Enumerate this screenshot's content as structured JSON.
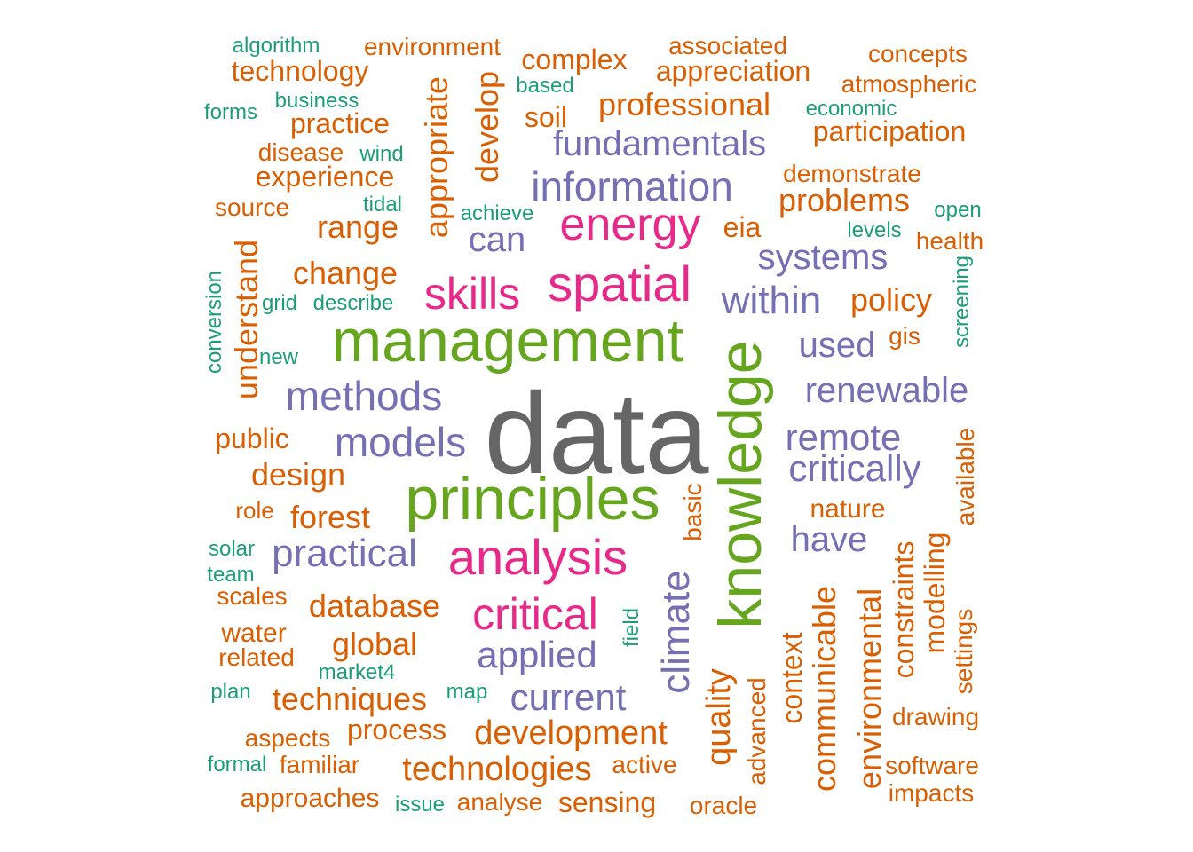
{
  "chart_data": {
    "type": "wordcloud",
    "colors": {
      "grey": "#666666",
      "green": "#66a61e",
      "pink": "#e7298a",
      "purple": "#7570b3",
      "orange": "#d95f02",
      "teal": "#1b9e77"
    },
    "words": [
      {
        "text": "data",
        "color": "grey",
        "size": 130,
        "rotate": false
      },
      {
        "text": "management",
        "color": "green",
        "size": 68,
        "rotate": false
      },
      {
        "text": "principles",
        "color": "green",
        "size": 68,
        "rotate": false
      },
      {
        "text": "knowledge",
        "color": "green",
        "size": 68,
        "rotate": true
      },
      {
        "text": "spatial",
        "color": "pink",
        "size": 56,
        "rotate": false
      },
      {
        "text": "analysis",
        "color": "pink",
        "size": 56,
        "rotate": false
      },
      {
        "text": "skills",
        "color": "pink",
        "size": 50,
        "rotate": false
      },
      {
        "text": "energy",
        "color": "pink",
        "size": 52,
        "rotate": false
      },
      {
        "text": "critical",
        "color": "pink",
        "size": 50,
        "rotate": false
      },
      {
        "text": "information",
        "color": "purple",
        "size": 46,
        "rotate": false
      },
      {
        "text": "methods",
        "color": "purple",
        "size": 46,
        "rotate": false
      },
      {
        "text": "models",
        "color": "purple",
        "size": 46,
        "rotate": false
      },
      {
        "text": "practical",
        "color": "purple",
        "size": 44,
        "rotate": false
      },
      {
        "text": "climate",
        "color": "purple",
        "size": 44,
        "rotate": true
      },
      {
        "text": "within",
        "color": "purple",
        "size": 44,
        "rotate": false
      },
      {
        "text": "fundamentals",
        "color": "purple",
        "size": 40,
        "rotate": false
      },
      {
        "text": "applied",
        "color": "purple",
        "size": 42,
        "rotate": false
      },
      {
        "text": "current",
        "color": "purple",
        "size": 42,
        "rotate": false
      },
      {
        "text": "critically",
        "color": "purple",
        "size": 42,
        "rotate": false
      },
      {
        "text": "remote",
        "color": "purple",
        "size": 42,
        "rotate": false
      },
      {
        "text": "renewable",
        "color": "purple",
        "size": 40,
        "rotate": false
      },
      {
        "text": "systems",
        "color": "purple",
        "size": 40,
        "rotate": false
      },
      {
        "text": "used",
        "color": "purple",
        "size": 40,
        "rotate": false
      },
      {
        "text": "have",
        "color": "purple",
        "size": 40,
        "rotate": false
      },
      {
        "text": "can",
        "color": "purple",
        "size": 40,
        "rotate": false
      },
      {
        "text": "development",
        "color": "orange",
        "size": 38,
        "rotate": false
      },
      {
        "text": "technologies",
        "color": "orange",
        "size": 38,
        "rotate": false
      },
      {
        "text": "techniques",
        "color": "orange",
        "size": 36,
        "rotate": false
      },
      {
        "text": "quality",
        "color": "orange",
        "size": 38,
        "rotate": true
      },
      {
        "text": "environmental",
        "color": "orange",
        "size": 36,
        "rotate": true
      },
      {
        "text": "communicable",
        "color": "orange",
        "size": 36,
        "rotate": true
      },
      {
        "text": "understand",
        "color": "orange",
        "size": 36,
        "rotate": true
      },
      {
        "text": "appropriate",
        "color": "orange",
        "size": 36,
        "rotate": true
      },
      {
        "text": "develop",
        "color": "orange",
        "size": 36,
        "rotate": true
      },
      {
        "text": "professional",
        "color": "orange",
        "size": 36,
        "rotate": false
      },
      {
        "text": "database",
        "color": "orange",
        "size": 36,
        "rotate": false
      },
      {
        "text": "global",
        "color": "orange",
        "size": 36,
        "rotate": false
      },
      {
        "text": "policy",
        "color": "orange",
        "size": 36,
        "rotate": false
      },
      {
        "text": "problems",
        "color": "orange",
        "size": 36,
        "rotate": false
      },
      {
        "text": "change",
        "color": "orange",
        "size": 36,
        "rotate": false
      },
      {
        "text": "range",
        "color": "orange",
        "size": 36,
        "rotate": false
      },
      {
        "text": "design",
        "color": "orange",
        "size": 36,
        "rotate": false
      },
      {
        "text": "forest",
        "color": "orange",
        "size": 36,
        "rotate": false
      },
      {
        "text": "technology",
        "color": "orange",
        "size": 32,
        "rotate": false
      },
      {
        "text": "appreciation",
        "color": "orange",
        "size": 32,
        "rotate": false
      },
      {
        "text": "complex",
        "color": "orange",
        "size": 32,
        "rotate": false
      },
      {
        "text": "practice",
        "color": "orange",
        "size": 32,
        "rotate": false
      },
      {
        "text": "experience",
        "color": "orange",
        "size": 32,
        "rotate": false
      },
      {
        "text": "participation",
        "color": "orange",
        "size": 32,
        "rotate": false
      },
      {
        "text": "soil",
        "color": "orange",
        "size": 32,
        "rotate": false
      },
      {
        "text": "process",
        "color": "orange",
        "size": 32,
        "rotate": false
      },
      {
        "text": "sensing",
        "color": "orange",
        "size": 32,
        "rotate": false
      },
      {
        "text": "eia",
        "color": "orange",
        "size": 32,
        "rotate": false
      },
      {
        "text": "constraints",
        "color": "orange",
        "size": 32,
        "rotate": true
      },
      {
        "text": "modelling",
        "color": "orange",
        "size": 32,
        "rotate": true
      },
      {
        "text": "context",
        "color": "orange",
        "size": 32,
        "rotate": true
      },
      {
        "text": "environment",
        "color": "orange",
        "size": 28,
        "rotate": false
      },
      {
        "text": "associated",
        "color": "orange",
        "size": 28,
        "rotate": false
      },
      {
        "text": "concepts",
        "color": "orange",
        "size": 28,
        "rotate": false
      },
      {
        "text": "atmospheric",
        "color": "orange",
        "size": 28,
        "rotate": false
      },
      {
        "text": "demonstrate",
        "color": "orange",
        "size": 28,
        "rotate": false
      },
      {
        "text": "disease",
        "color": "orange",
        "size": 28,
        "rotate": false
      },
      {
        "text": "source",
        "color": "orange",
        "size": 28,
        "rotate": false
      },
      {
        "text": "public",
        "color": "orange",
        "size": 32,
        "rotate": false
      },
      {
        "text": "nature",
        "color": "orange",
        "size": 30,
        "rotate": false
      },
      {
        "text": "health",
        "color": "orange",
        "size": 28,
        "rotate": false
      },
      {
        "text": "gis",
        "color": "orange",
        "size": 28,
        "rotate": false
      },
      {
        "text": "role",
        "color": "orange",
        "size": 26,
        "rotate": false
      },
      {
        "text": "scales",
        "color": "orange",
        "size": 28,
        "rotate": false
      },
      {
        "text": "water",
        "color": "orange",
        "size": 30,
        "rotate": false
      },
      {
        "text": "related",
        "color": "orange",
        "size": 28,
        "rotate": false
      },
      {
        "text": "aspects",
        "color": "orange",
        "size": 28,
        "rotate": false
      },
      {
        "text": "familiar",
        "color": "orange",
        "size": 28,
        "rotate": false
      },
      {
        "text": "approaches",
        "color": "orange",
        "size": 30,
        "rotate": false
      },
      {
        "text": "analyse",
        "color": "orange",
        "size": 28,
        "rotate": false
      },
      {
        "text": "active",
        "color": "orange",
        "size": 28,
        "rotate": false
      },
      {
        "text": "oracle",
        "color": "orange",
        "size": 28,
        "rotate": false
      },
      {
        "text": "drawing",
        "color": "orange",
        "size": 28,
        "rotate": false
      },
      {
        "text": "software",
        "color": "orange",
        "size": 28,
        "rotate": false
      },
      {
        "text": "impacts",
        "color": "orange",
        "size": 28,
        "rotate": false
      },
      {
        "text": "basic",
        "color": "orange",
        "size": 28,
        "rotate": true
      },
      {
        "text": "advanced",
        "color": "orange",
        "size": 28,
        "rotate": true
      },
      {
        "text": "available",
        "color": "orange",
        "size": 28,
        "rotate": true
      },
      {
        "text": "settings",
        "color": "orange",
        "size": 28,
        "rotate": true
      },
      {
        "text": "algorithm",
        "color": "teal",
        "size": 24,
        "rotate": false
      },
      {
        "text": "business",
        "color": "teal",
        "size": 24,
        "rotate": false
      },
      {
        "text": "forms",
        "color": "teal",
        "size": 24,
        "rotate": false
      },
      {
        "text": "based",
        "color": "teal",
        "size": 24,
        "rotate": false
      },
      {
        "text": "economic",
        "color": "teal",
        "size": 24,
        "rotate": false
      },
      {
        "text": "wind",
        "color": "teal",
        "size": 24,
        "rotate": false
      },
      {
        "text": "tidal",
        "color": "teal",
        "size": 24,
        "rotate": false
      },
      {
        "text": "achieve",
        "color": "teal",
        "size": 24,
        "rotate": false
      },
      {
        "text": "open",
        "color": "teal",
        "size": 24,
        "rotate": false
      },
      {
        "text": "levels",
        "color": "teal",
        "size": 24,
        "rotate": false
      },
      {
        "text": "grid",
        "color": "teal",
        "size": 24,
        "rotate": false
      },
      {
        "text": "describe",
        "color": "teal",
        "size": 24,
        "rotate": false
      },
      {
        "text": "new",
        "color": "teal",
        "size": 24,
        "rotate": false
      },
      {
        "text": "solar",
        "color": "teal",
        "size": 24,
        "rotate": false
      },
      {
        "text": "team",
        "color": "teal",
        "size": 24,
        "rotate": false
      },
      {
        "text": "market4",
        "color": "teal",
        "size": 24,
        "rotate": false
      },
      {
        "text": "map",
        "color": "teal",
        "size": 24,
        "rotate": false
      },
      {
        "text": "plan",
        "color": "teal",
        "size": 24,
        "rotate": false
      },
      {
        "text": "formal",
        "color": "teal",
        "size": 24,
        "rotate": false
      },
      {
        "text": "issue",
        "color": "teal",
        "size": 24,
        "rotate": false
      },
      {
        "text": "conversion",
        "color": "teal",
        "size": 24,
        "rotate": true
      },
      {
        "text": "screening",
        "color": "teal",
        "size": 24,
        "rotate": true
      },
      {
        "text": "field",
        "color": "teal",
        "size": 24,
        "rotate": true
      }
    ]
  }
}
